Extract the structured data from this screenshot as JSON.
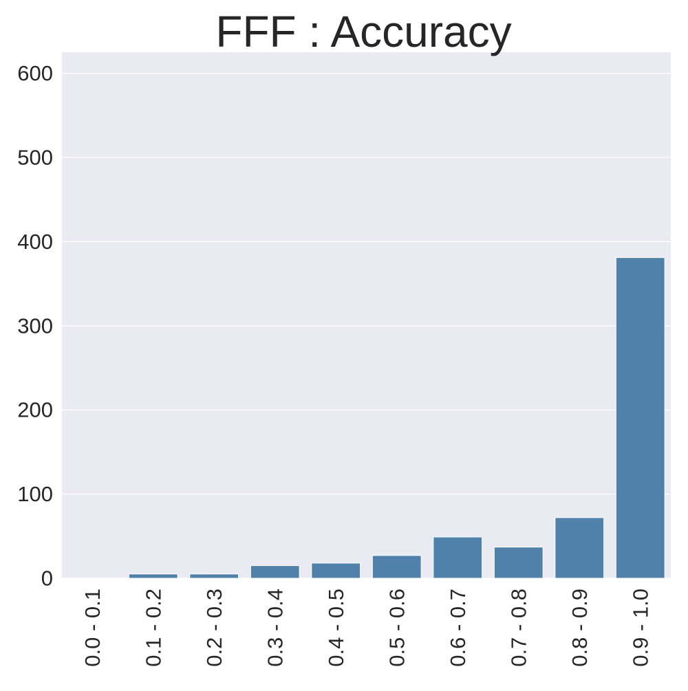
{
  "chart_data": {
    "type": "bar",
    "title": "FFF : Accuracy",
    "xlabel": "",
    "ylabel": "",
    "categories": [
      "0.0 - 0.1",
      "0.1 - 0.2",
      "0.2 - 0.3",
      "0.3 - 0.4",
      "0.4 - 0.5",
      "0.5 - 0.6",
      "0.6 - 0.7",
      "0.7 - 0.8",
      "0.8 - 0.9",
      "0.9 - 1.0"
    ],
    "values": [
      0,
      5,
      5,
      15,
      18,
      27,
      49,
      37,
      72,
      381
    ],
    "ylim": [
      0,
      625
    ],
    "yticks": [
      0,
      100,
      200,
      300,
      400,
      500,
      600
    ],
    "ytick_labels": [
      "0",
      "100",
      "200",
      "300",
      "400",
      "500",
      "600"
    ],
    "grid": true,
    "bar_color": "#4f81aa",
    "plot_background": "#eaeaf2",
    "grid_color": "#ffffff",
    "text_color": "#262626"
  }
}
